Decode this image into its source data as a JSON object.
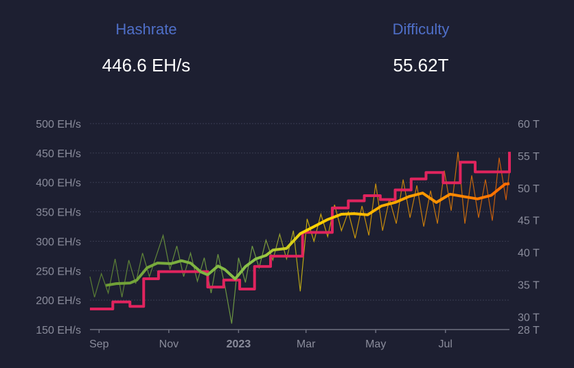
{
  "header": {
    "hashrate": {
      "label": "Hashrate",
      "value": "446.6 EH/s"
    },
    "difficulty": {
      "label": "Difficulty",
      "value": "55.62T"
    }
  },
  "colors": {
    "background": "#1d1f31",
    "label": "#4f6fc8",
    "difficulty": "#e0245e",
    "hashrate_gradient": [
      "#6c9a34",
      "#8bc34a",
      "#ffd600",
      "#ff9800",
      "#ff6a00"
    ]
  },
  "chart_data": {
    "type": "line",
    "grid": true,
    "left_axis": {
      "ylim": [
        150,
        500
      ],
      "ticks": [
        "500 EH/s",
        "450 EH/s",
        "400 EH/s",
        "350 EH/s",
        "300 EH/s",
        "250 EH/s",
        "200 EH/s",
        "150 EH/s"
      ],
      "tick_values": [
        500,
        450,
        400,
        350,
        300,
        250,
        200,
        150
      ]
    },
    "right_axis": {
      "ylim": [
        28,
        60
      ],
      "ticks": [
        "60 T",
        "55 T",
        "50 T",
        "45 T",
        "40 T",
        "35 T",
        "30 T",
        "28 T"
      ],
      "tick_values": [
        60,
        55,
        50,
        45,
        40,
        35,
        30,
        28
      ]
    },
    "x_axis": {
      "xlim": [
        "2022-08-24",
        "2023-08-26"
      ],
      "ticks": [
        {
          "label": "Sep",
          "date": "2022-09-01",
          "bold": false
        },
        {
          "label": "Nov",
          "date": "2022-11-01",
          "bold": false
        },
        {
          "label": "2023",
          "date": "2023-01-01",
          "bold": true
        },
        {
          "label": "Mar",
          "date": "2023-03-01",
          "bold": false
        },
        {
          "label": "May",
          "date": "2023-05-01",
          "bold": false
        },
        {
          "label": "Jul",
          "date": "2023-07-01",
          "bold": false
        }
      ]
    },
    "series": [
      {
        "key": "hashrate_raw",
        "axis": "left",
        "points": [
          [
            "2022-08-24",
            240
          ],
          [
            "2022-08-28",
            205
          ],
          [
            "2022-09-03",
            245
          ],
          [
            "2022-09-09",
            212
          ],
          [
            "2022-09-15",
            270
          ],
          [
            "2022-09-21",
            205
          ],
          [
            "2022-09-27",
            268
          ],
          [
            "2022-10-03",
            228
          ],
          [
            "2022-10-09",
            280
          ],
          [
            "2022-10-15",
            240
          ],
          [
            "2022-10-21",
            275
          ],
          [
            "2022-10-27",
            310
          ],
          [
            "2022-11-02",
            252
          ],
          [
            "2022-11-08",
            292
          ],
          [
            "2022-11-14",
            240
          ],
          [
            "2022-11-20",
            280
          ],
          [
            "2022-11-26",
            232
          ],
          [
            "2022-12-02",
            272
          ],
          [
            "2022-12-08",
            212
          ],
          [
            "2022-12-14",
            278
          ],
          [
            "2022-12-20",
            225
          ],
          [
            "2022-12-26",
            160
          ],
          [
            "2023-01-01",
            272
          ],
          [
            "2023-01-07",
            230
          ],
          [
            "2023-01-13",
            292
          ],
          [
            "2023-01-19",
            255
          ],
          [
            "2023-01-25",
            302
          ],
          [
            "2023-01-31",
            268
          ],
          [
            "2023-02-06",
            312
          ],
          [
            "2023-02-12",
            270
          ],
          [
            "2023-02-18",
            318
          ],
          [
            "2023-02-24",
            215
          ],
          [
            "2023-03-02",
            338
          ],
          [
            "2023-03-08",
            300
          ],
          [
            "2023-03-14",
            346
          ],
          [
            "2023-03-20",
            308
          ],
          [
            "2023-03-26",
            362
          ],
          [
            "2023-04-01",
            318
          ],
          [
            "2023-04-07",
            350
          ],
          [
            "2023-04-13",
            305
          ],
          [
            "2023-04-19",
            360
          ],
          [
            "2023-04-25",
            310
          ],
          [
            "2023-05-01",
            398
          ],
          [
            "2023-05-07",
            318
          ],
          [
            "2023-05-13",
            372
          ],
          [
            "2023-05-19",
            330
          ],
          [
            "2023-05-25",
            405
          ],
          [
            "2023-05-31",
            340
          ],
          [
            "2023-06-06",
            395
          ],
          [
            "2023-06-12",
            325
          ],
          [
            "2023-06-18",
            386
          ],
          [
            "2023-06-24",
            330
          ],
          [
            "2023-06-30",
            420
          ],
          [
            "2023-07-06",
            352
          ],
          [
            "2023-07-12",
            452
          ],
          [
            "2023-07-18",
            330
          ],
          [
            "2023-07-24",
            412
          ],
          [
            "2023-07-30",
            340
          ],
          [
            "2023-08-05",
            405
          ],
          [
            "2023-08-11",
            335
          ],
          [
            "2023-08-17",
            442
          ],
          [
            "2023-08-23",
            370
          ],
          [
            "2023-08-26",
            420
          ]
        ]
      },
      {
        "key": "hashrate_avg",
        "axis": "left",
        "points": [
          [
            "2022-09-07",
            225
          ],
          [
            "2022-09-16",
            228
          ],
          [
            "2022-09-28",
            229
          ],
          [
            "2022-10-04",
            234
          ],
          [
            "2022-10-13",
            255
          ],
          [
            "2022-10-22",
            263
          ],
          [
            "2022-11-03",
            262
          ],
          [
            "2022-11-12",
            267
          ],
          [
            "2022-11-20",
            263
          ],
          [
            "2022-11-29",
            248
          ],
          [
            "2022-12-05",
            243
          ],
          [
            "2022-12-14",
            258
          ],
          [
            "2022-12-20",
            252
          ],
          [
            "2022-12-29",
            236
          ],
          [
            "2023-01-07",
            257
          ],
          [
            "2023-01-16",
            270
          ],
          [
            "2023-01-25",
            276
          ],
          [
            "2023-01-31",
            285
          ],
          [
            "2023-02-12",
            288
          ],
          [
            "2023-02-24",
            313
          ],
          [
            "2023-03-08",
            325
          ],
          [
            "2023-03-20",
            337
          ],
          [
            "2023-04-01",
            346
          ],
          [
            "2023-04-12",
            347
          ],
          [
            "2023-04-24",
            345
          ],
          [
            "2023-05-06",
            360
          ],
          [
            "2023-05-18",
            366
          ],
          [
            "2023-05-30",
            376
          ],
          [
            "2023-06-11",
            382
          ],
          [
            "2023-06-23",
            366
          ],
          [
            "2023-07-05",
            380
          ],
          [
            "2023-07-17",
            376
          ],
          [
            "2023-07-29",
            372
          ],
          [
            "2023-08-10",
            378
          ],
          [
            "2023-08-22",
            397
          ],
          [
            "2023-08-26",
            398
          ]
        ]
      },
      {
        "key": "difficulty",
        "axis": "right",
        "step": true,
        "points": [
          [
            "2022-08-24",
            31.2
          ],
          [
            "2022-09-13",
            32.3
          ],
          [
            "2022-09-28",
            31.6
          ],
          [
            "2022-10-10",
            35.9
          ],
          [
            "2022-10-23",
            37.0
          ],
          [
            "2022-12-05",
            34.6
          ],
          [
            "2022-12-19",
            35.7
          ],
          [
            "2023-01-02",
            34.3
          ],
          [
            "2023-01-15",
            37.8
          ],
          [
            "2023-01-29",
            39.4
          ],
          [
            "2023-02-26",
            43.1
          ],
          [
            "2023-03-24",
            46.9
          ],
          [
            "2023-04-07",
            48.0
          ],
          [
            "2023-04-21",
            48.8
          ],
          [
            "2023-05-05",
            48.2
          ],
          [
            "2023-05-18",
            49.7
          ],
          [
            "2023-06-01",
            51.4
          ],
          [
            "2023-06-14",
            52.4
          ],
          [
            "2023-06-29",
            50.8
          ],
          [
            "2023-07-14",
            54.0
          ],
          [
            "2023-07-27",
            52.5
          ],
          [
            "2023-08-26",
            55.62
          ]
        ]
      }
    ]
  }
}
